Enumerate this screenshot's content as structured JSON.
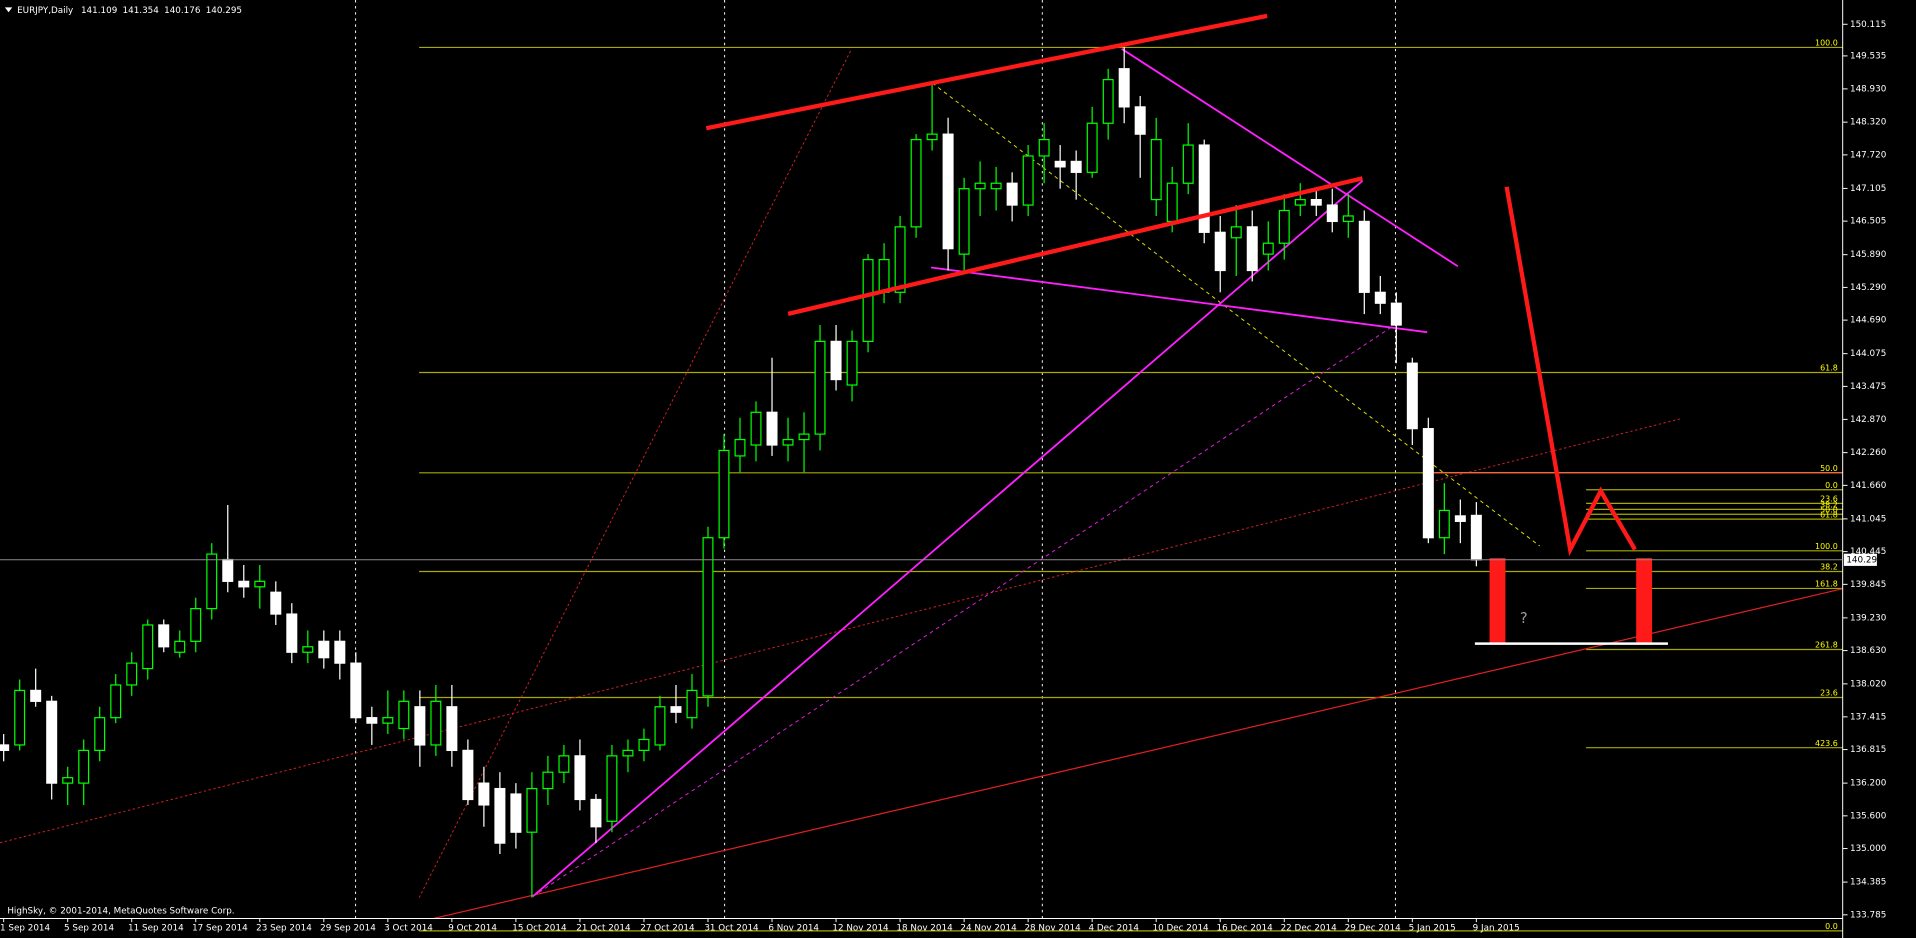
{
  "chart_data": {
    "type": "candlestick",
    "title": "EURJPY,Daily",
    "footer": "HighSky, © 2001-2014, MetaQuotes Software Corp.",
    "annotation": "?",
    "background": "#000000",
    "bull_color": "#00ff00",
    "bear_color": "#ffffff",
    "level_color": "#a8a800",
    "level_label_color": "#ffff00",
    "grid": false,
    "ylim": [
      133.36,
      150.56
    ],
    "yticks": [
      150.115,
      149.535,
      {
        "value": 148.93,
        "label": "148.930"
      },
      {
        "value": 148.32,
        "label": "148.320"
      },
      {
        "value": 147.72,
        "label": "147.720"
      },
      147.105,
      146.505,
      {
        "value": 145.89,
        "label": "145.890"
      },
      {
        "value": 145.29,
        "label": "145.290"
      },
      {
        "value": 144.69,
        "label": "144.690"
      },
      144.075,
      143.475,
      {
        "value": 142.87,
        "label": "142.870"
      },
      {
        "value": 142.26,
        "label": "142.260"
      },
      {
        "value": 141.66,
        "label": "141.660"
      },
      141.045,
      140.445,
      139.845,
      {
        "value": 139.23,
        "label": "139.230"
      },
      {
        "value": 138.63,
        "label": "138.630"
      },
      {
        "value": 138.02,
        "label": "138.020"
      },
      137.415,
      136.815,
      {
        "value": 136.2,
        "label": "136.200"
      },
      {
        "value": 135.6,
        "label": "135.600"
      },
      {
        "value": 135.0,
        "label": "135.000"
      },
      134.385,
      133.785
    ],
    "categories": [
      "1 Sep 2014",
      null,
      null,
      null,
      "5 Sep 2014",
      null,
      null,
      null,
      "11 Sep 2014",
      null,
      null,
      null,
      "17 Sep 2014",
      null,
      null,
      null,
      "23 Sep 2014",
      null,
      null,
      null,
      "29 Sep 2014",
      null,
      null,
      null,
      "3 Oct 2014",
      null,
      null,
      null,
      "9 Oct 2014",
      null,
      null,
      null,
      "15 Oct 2014",
      null,
      null,
      null,
      "21 Oct 2014",
      null,
      null,
      null,
      "27 Oct 2014",
      null,
      null,
      null,
      "31 Oct 2014",
      null,
      null,
      null,
      "6 Nov 2014",
      null,
      null,
      null,
      "12 Nov 2014",
      null,
      null,
      null,
      "18 Nov 2014",
      null,
      null,
      null,
      "24 Nov 2014",
      null,
      null,
      null,
      "28 Nov 2014",
      null,
      null,
      null,
      "4 Dec 2014",
      null,
      null,
      null,
      "10 Dec 2014",
      null,
      null,
      null,
      "16 Dec 2014",
      null,
      null,
      null,
      "22 Dec 2014",
      null,
      null,
      null,
      "29 Dec 2014",
      null,
      null,
      null,
      "5 Jan 2015",
      null,
      null,
      null,
      "9 Jan 2015"
    ],
    "open": [
      136.9,
      136.9,
      137.9,
      137.7,
      136.2,
      136.2,
      136.8,
      137.4,
      138.0,
      138.3,
      139.1,
      138.6,
      138.8,
      139.4,
      140.3,
      139.9,
      139.8,
      139.7,
      139.3,
      138.6,
      138.8,
      138.8,
      138.4,
      137.4,
      137.3,
      137.2,
      137.6,
      136.9,
      137.6,
      136.8,
      136.2,
      136.1,
      136.0,
      135.3,
      136.1,
      136.4,
      136.7,
      135.9,
      135.5,
      136.7,
      136.8,
      136.9,
      137.6,
      137.4,
      137.8,
      140.7,
      142.2,
      142.4,
      143.0,
      142.4,
      142.5,
      142.6,
      144.3,
      143.5,
      144.3,
      145.2,
      145.2,
      146.4,
      148.0,
      148.1,
      145.9,
      147.1,
      147.1,
      147.2,
      146.8,
      147.7,
      147.6,
      147.6,
      147.4,
      148.3,
      149.3,
      148.6,
      146.9,
      146.5,
      147.2,
      147.9,
      146.3,
      146.2,
      146.4,
      145.9,
      146.1,
      146.8,
      146.9,
      146.8,
      146.5,
      146.5,
      145.2,
      145.0,
      143.9,
      142.7,
      140.7,
      141.1,
      141.109
    ],
    "high": [
      137.1,
      138.1,
      138.3,
      137.8,
      136.5,
      137.0,
      137.6,
      138.2,
      138.6,
      139.2,
      139.2,
      139.0,
      139.6,
      140.6,
      141.3,
      140.2,
      140.2,
      139.9,
      139.5,
      139.0,
      139.0,
      139.0,
      138.6,
      137.6,
      137.9,
      137.9,
      137.9,
      138.0,
      138.0,
      137.0,
      136.5,
      136.4,
      136.2,
      136.4,
      136.7,
      136.9,
      137.0,
      136.0,
      136.9,
      137.0,
      137.2,
      137.8,
      138.0,
      138.2,
      140.9,
      142.6,
      142.9,
      143.2,
      144.0,
      142.9,
      143.0,
      144.6,
      144.6,
      144.5,
      145.9,
      146.1,
      146.6,
      148.1,
      149.0,
      148.4,
      147.3,
      147.6,
      147.5,
      147.4,
      147.9,
      148.3,
      147.9,
      147.8,
      148.6,
      149.3,
      149.7,
      148.8,
      148.4,
      147.5,
      148.3,
      148.0,
      146.6,
      146.8,
      146.7,
      146.5,
      147.0,
      147.2,
      147.1,
      147.1,
      147.0,
      146.7,
      145.5,
      145.2,
      144.0,
      142.9,
      141.7,
      141.4,
      141.354
    ],
    "low": [
      136.6,
      136.8,
      137.6,
      135.9,
      135.8,
      135.8,
      136.6,
      137.3,
      137.8,
      138.1,
      138.6,
      138.5,
      138.6,
      139.2,
      139.7,
      139.6,
      139.4,
      139.1,
      138.4,
      138.4,
      138.3,
      138.1,
      137.3,
      136.9,
      137.1,
      137.0,
      136.5,
      136.7,
      136.5,
      135.8,
      135.4,
      134.9,
      135.0,
      134.1,
      135.8,
      136.2,
      135.7,
      135.1,
      135.3,
      136.4,
      136.6,
      136.8,
      137.3,
      137.2,
      137.6,
      140.5,
      141.9,
      142.1,
      142.2,
      142.1,
      141.9,
      142.3,
      143.4,
      143.2,
      144.1,
      145.0,
      145.0,
      146.2,
      147.8,
      145.6,
      145.6,
      146.6,
      146.7,
      146.5,
      146.6,
      147.2,
      147.1,
      146.9,
      147.3,
      148.0,
      148.3,
      147.3,
      146.6,
      146.3,
      147.0,
      146.1,
      145.2,
      145.5,
      145.4,
      145.6,
      145.8,
      146.6,
      146.6,
      146.3,
      146.2,
      144.8,
      144.8,
      143.9,
      142.4,
      140.6,
      140.4,
      140.6,
      140.176
    ],
    "close": [
      136.8,
      137.9,
      137.7,
      136.2,
      136.3,
      136.8,
      137.4,
      138.0,
      138.4,
      139.1,
      138.7,
      138.8,
      139.4,
      140.4,
      139.9,
      139.8,
      139.9,
      139.3,
      138.6,
      138.7,
      138.5,
      138.4,
      137.4,
      137.3,
      137.4,
      137.7,
      136.9,
      137.7,
      136.8,
      135.9,
      135.8,
      135.1,
      135.3,
      136.1,
      136.4,
      136.7,
      135.9,
      135.4,
      136.7,
      136.8,
      137.0,
      137.6,
      137.5,
      137.9,
      140.7,
      142.3,
      142.5,
      143.0,
      142.4,
      142.5,
      142.6,
      144.3,
      143.6,
      144.3,
      145.8,
      145.8,
      146.4,
      148.0,
      148.1,
      146.0,
      147.1,
      147.2,
      147.2,
      146.8,
      147.7,
      148.0,
      147.5,
      147.4,
      148.3,
      149.1,
      148.6,
      148.1,
      148.0,
      147.2,
      147.9,
      146.3,
      145.6,
      146.4,
      145.6,
      146.1,
      146.7,
      146.9,
      146.8,
      146.5,
      146.6,
      145.2,
      145.0,
      144.6,
      142.7,
      140.7,
      141.2,
      141.0,
      140.295
    ],
    "fibo_1": [
      {
        "price": 149.69,
        "label": "100.0"
      },
      {
        "price": 143.73,
        "label": "61.8"
      },
      {
        "price": 141.89,
        "label": "50.0"
      },
      {
        "price": 140.08,
        "label": "38.2"
      },
      {
        "price": 137.77,
        "label": "23.6"
      },
      {
        "price": 133.49,
        "label": "0.0"
      }
    ],
    "fibo_2": [
      {
        "price": 141.58,
        "label": "0.0"
      },
      {
        "price": 141.33,
        "label": "23.6"
      },
      {
        "price": 141.22,
        "label": "38.2"
      },
      {
        "price": 141.13,
        "label": "50.0"
      },
      {
        "price": 141.04,
        "label": "61.8"
      },
      {
        "price": 140.46,
        "label": "100.0"
      },
      {
        "price": 139.77,
        "label": "161.8"
      },
      {
        "price": 138.65,
        "label": "261.8"
      },
      {
        "price": 136.85,
        "label": "423.6"
      }
    ]
  }
}
